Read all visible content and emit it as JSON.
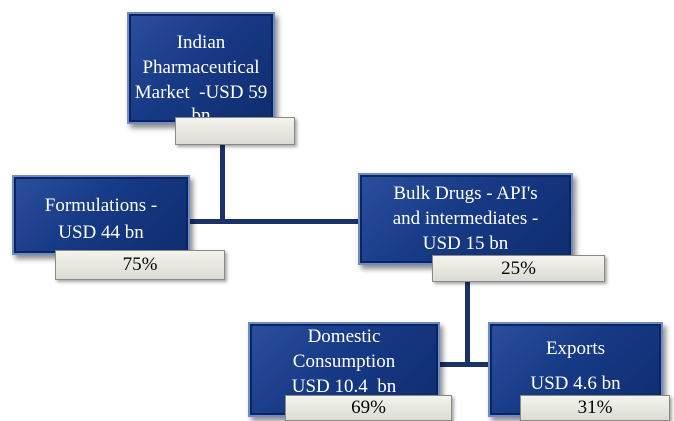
{
  "nodes": [
    {
      "lines": [
        "Indian",
        "Pharmaceutical",
        "Market  -USD 59",
        "bn"
      ],
      "share": ""
    },
    {
      "lines": [
        "Formulations -",
        "USD 44 bn"
      ],
      "share": "75%"
    },
    {
      "lines": [
        "Bulk Drugs - API's",
        "and intermediates -",
        "USD 15 bn"
      ],
      "share": "25%"
    },
    {
      "lines": [
        "Domestic",
        "Consumption",
        "USD 10.4  bn"
      ],
      "share": "69%"
    },
    {
      "lines": [
        "Exports",
        "USD 4.6 bn"
      ],
      "share": "31%"
    }
  ]
}
